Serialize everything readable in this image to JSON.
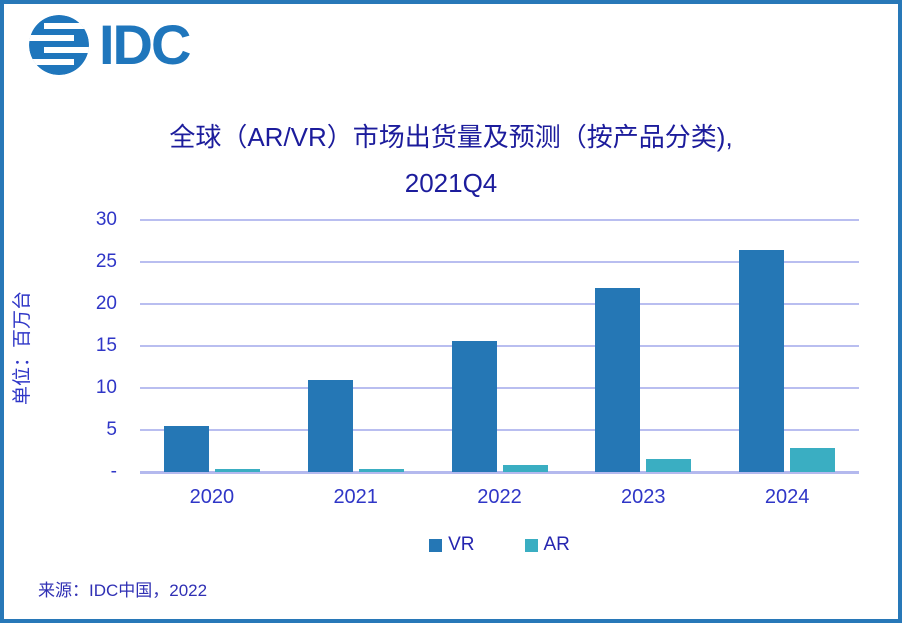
{
  "logo": {
    "brand": "IDC",
    "color": "#1f76bc"
  },
  "title": {
    "line1": "全球（AR/VR）市场出货量及预测（按产品分类),",
    "line2": "2021Q4"
  },
  "chart_data": {
    "type": "bar",
    "title": "全球（AR/VR）市场出货量及预测（按产品分类), 2021Q4",
    "categories": [
      "2020",
      "2021",
      "2022",
      "2023",
      "2024"
    ],
    "series": [
      {
        "name": "VR",
        "color": "#2577b5",
        "values": [
          5.5,
          10.9,
          15.6,
          21.9,
          26.4
        ]
      },
      {
        "name": "AR",
        "color": "#3aaec2",
        "values": [
          0.3,
          0.3,
          0.8,
          1.5,
          2.9
        ]
      }
    ],
    "xlabel": "",
    "ylabel": "单位：百万台",
    "ylim": [
      0,
      30
    ],
    "yticks": [
      0,
      5,
      10,
      15,
      20,
      25,
      30
    ],
    "ytick_labels": [
      "-",
      "5",
      "10",
      "15",
      "20",
      "25",
      "30"
    ],
    "grid": true,
    "gridline_color": "#b9bef0",
    "legend_position": "bottom"
  },
  "source": {
    "text": "来源：IDC中国，2022"
  },
  "colors": {
    "border": "#2878b8",
    "title_text": "#1c1c9c",
    "axis_text": "#2f36c7",
    "legend_text": "#2525b0",
    "source_text": "#3030b4",
    "vr_bar": "#2577b5",
    "ar_bar": "#3aaec2"
  }
}
